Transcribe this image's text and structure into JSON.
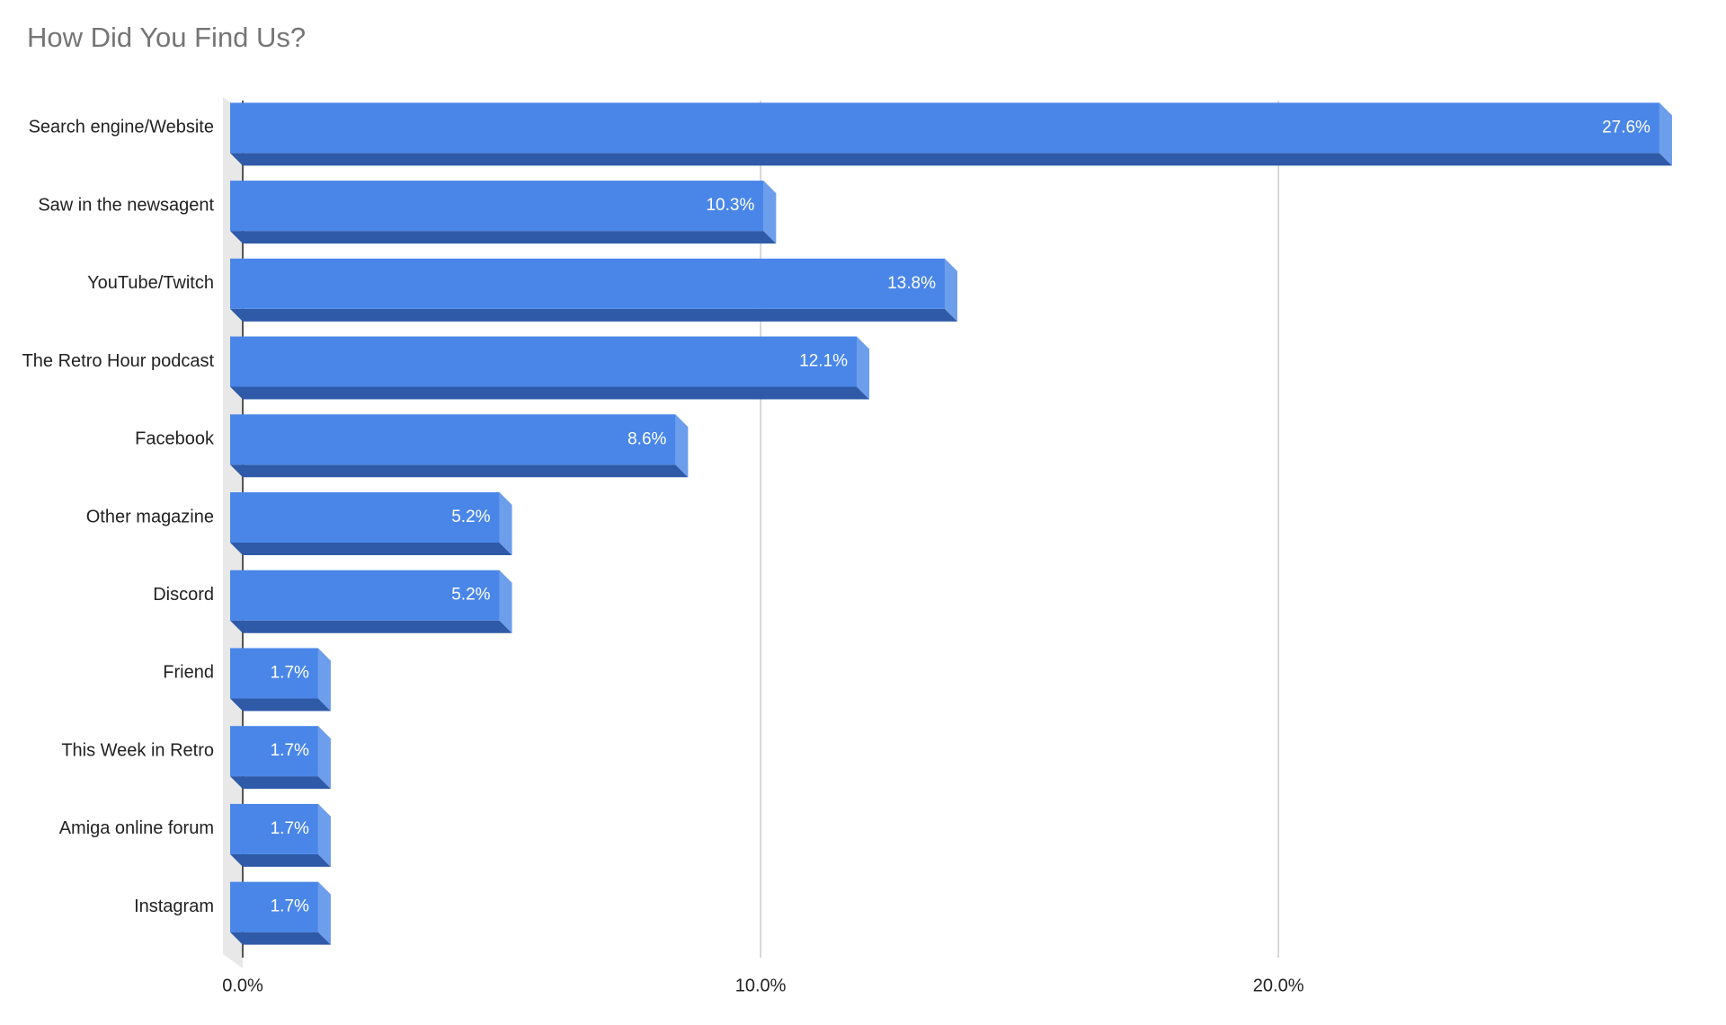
{
  "chart_data": {
    "type": "bar3d",
    "orientation": "horizontal",
    "title": "How Did You Find Us?",
    "categories": [
      "Search engine/Website",
      "Saw in the newsagent",
      "YouTube/Twitch",
      "The Retro Hour podcast",
      "Facebook",
      "Other magazine",
      "Discord",
      "Friend",
      "This Week in Retro",
      "Amiga online forum",
      "Instagram"
    ],
    "values": [
      27.6,
      10.3,
      13.8,
      12.1,
      8.6,
      5.2,
      5.2,
      1.7,
      1.7,
      1.7,
      1.7
    ],
    "value_labels": [
      "27.6%",
      "10.3%",
      "13.8%",
      "12.1%",
      "8.6%",
      "5.2%",
      "5.2%",
      "1.7%",
      "1.7%",
      "1.7%",
      "1.7%"
    ],
    "color": "#4a86e8",
    "xlim": [
      0,
      28
    ],
    "xticks": [
      {
        "value": 0,
        "label": "0.0%"
      },
      {
        "value": 10,
        "label": "10.0%"
      },
      {
        "value": 20,
        "label": "20.0%"
      }
    ],
    "grid": true
  }
}
